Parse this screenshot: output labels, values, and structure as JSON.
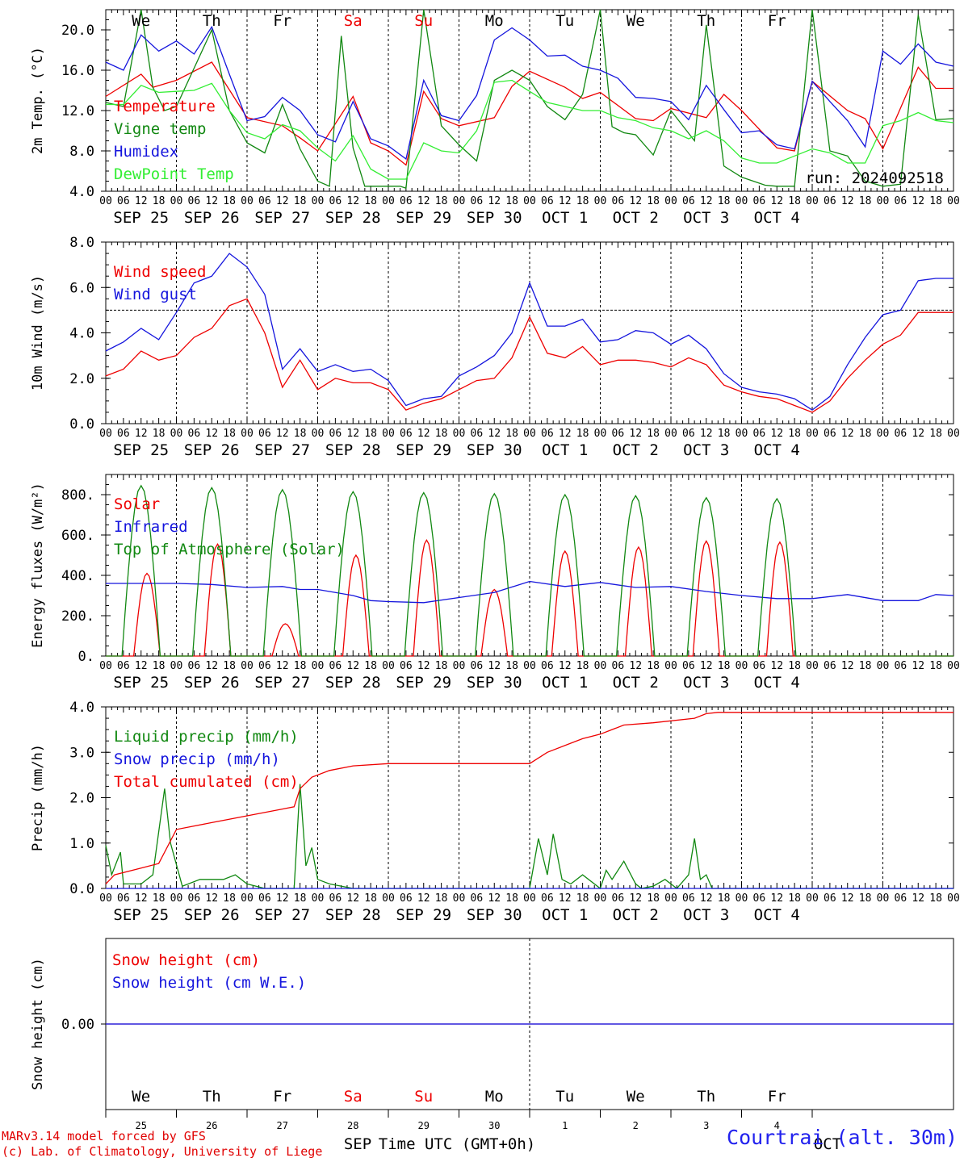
{
  "chart_data": [
    {
      "type": "line",
      "ylabel": "2m Temp. (°C)",
      "ylim": [
        4.0,
        22.0
      ],
      "yticks": [
        "4.0",
        "8.0",
        "12.0",
        "16.0",
        "20.0"
      ],
      "ytick_values": [
        4,
        8,
        12,
        16,
        20
      ],
      "annotation": "run: 2024092518",
      "series": [
        {
          "name": "Temperature",
          "color": "#ee0000",
          "x": [
            0,
            12,
            16,
            24,
            36,
            48,
            60,
            66,
            72,
            84,
            90,
            96,
            102,
            108,
            114,
            120,
            132,
            138,
            144,
            156,
            162,
            168,
            180,
            186,
            192,
            204,
            210,
            216,
            228,
            234,
            240,
            252,
            258,
            264,
            276,
            282,
            288
          ],
          "y": [
            13.4,
            15.6,
            14.3,
            15.0,
            16.8,
            11.3,
            10.5,
            9.3,
            8.0,
            13.4,
            8.8,
            8.0,
            6.6,
            13.9,
            11.2,
            10.5,
            11.3,
            14.4,
            15.9,
            14.3,
            13.2,
            13.8,
            11.2,
            11.0,
            12.2,
            11.3,
            13.6,
            12.0,
            8.3,
            8.0,
            14.9,
            12.0,
            11.2,
            8.2,
            16.3,
            14.2,
            14.2
          ]
        },
        {
          "name": "Vigne temp",
          "color": "#118811",
          "x": [
            0,
            6,
            12,
            16,
            20,
            24,
            36,
            42,
            48,
            54,
            60,
            66,
            72,
            76,
            80,
            84,
            88,
            92,
            96,
            100,
            102,
            108,
            114,
            120,
            126,
            132,
            138,
            144,
            150,
            156,
            162,
            168,
            172,
            176,
            180,
            186,
            192,
            200,
            204,
            210,
            216,
            224,
            228,
            234,
            240,
            246,
            252,
            258,
            264,
            270,
            276,
            282,
            288
          ],
          "y": [
            12.8,
            12.4,
            22.0,
            14.3,
            12.0,
            12.4,
            20.0,
            12.0,
            8.8,
            7.8,
            12.6,
            8.2,
            5.0,
            4.5,
            19.4,
            8.3,
            4.5,
            4.5,
            4.5,
            4.5,
            4.3,
            22.0,
            10.5,
            8.6,
            7.0,
            15.0,
            16.0,
            15.0,
            12.4,
            11.1,
            13.6,
            22.0,
            10.4,
            9.8,
            9.6,
            7.6,
            12.0,
            9.0,
            20.5,
            6.5,
            5.4,
            4.6,
            4.5,
            4.5,
            22.0,
            8.0,
            7.5,
            5.0,
            4.5,
            4.7,
            21.5,
            11.1,
            11.2
          ]
        },
        {
          "name": "Humidex",
          "color": "#1515dd",
          "x": [
            0,
            6,
            12,
            18,
            24,
            30,
            36,
            42,
            48,
            54,
            60,
            66,
            72,
            78,
            84,
            90,
            96,
            102,
            108,
            114,
            120,
            126,
            132,
            138,
            144,
            150,
            156,
            162,
            168,
            174,
            180,
            186,
            192,
            198,
            204,
            210,
            216,
            222,
            228,
            234,
            240,
            246,
            252,
            258,
            264,
            270,
            276,
            282,
            288
          ],
          "y": [
            16.8,
            16.0,
            19.5,
            17.9,
            18.9,
            17.6,
            20.3,
            15.6,
            11.0,
            11.4,
            13.3,
            12.0,
            9.6,
            8.9,
            12.9,
            9.2,
            8.5,
            7.2,
            15.0,
            11.5,
            11.0,
            13.5,
            19.0,
            20.2,
            19.0,
            17.4,
            17.5,
            16.4,
            16.0,
            15.2,
            13.3,
            13.2,
            12.9,
            11.1,
            14.5,
            12.1,
            9.8,
            10.0,
            8.6,
            8.2,
            14.9,
            12.9,
            11.0,
            8.4,
            17.9,
            16.6,
            18.6,
            16.8,
            16.4
          ]
        },
        {
          "name": "DewPoint Temp",
          "color": "#33ee33",
          "x": [
            0,
            6,
            12,
            18,
            24,
            30,
            36,
            42,
            48,
            54,
            60,
            66,
            72,
            78,
            84,
            90,
            96,
            102,
            108,
            114,
            120,
            126,
            132,
            138,
            144,
            150,
            156,
            162,
            168,
            174,
            180,
            186,
            192,
            198,
            204,
            210,
            216,
            222,
            228,
            234,
            240,
            246,
            252,
            258,
            264,
            270,
            276,
            282,
            288
          ],
          "y": [
            12.6,
            12.6,
            14.5,
            13.8,
            13.9,
            14.0,
            14.7,
            12.0,
            9.8,
            9.2,
            10.6,
            10.0,
            8.3,
            7.0,
            9.5,
            6.2,
            5.2,
            5.2,
            8.8,
            8.0,
            7.8,
            10.0,
            14.8,
            15.0,
            13.9,
            12.8,
            12.4,
            12.0,
            12.0,
            11.3,
            11.0,
            10.3,
            10.0,
            9.2,
            10.0,
            9.0,
            7.3,
            6.8,
            6.8,
            7.5,
            8.2,
            7.8,
            6.8,
            6.8,
            10.5,
            11.0,
            11.8,
            11.0,
            10.8
          ]
        }
      ]
    },
    {
      "type": "line",
      "ylabel": "10m Wind (m/s)",
      "ylim": [
        0.0,
        8.0
      ],
      "yticks": [
        "0.0",
        "2.0",
        "4.0",
        "6.0",
        "8.0"
      ],
      "ytick_values": [
        0,
        2,
        4,
        6,
        8
      ],
      "reference_line": 5.0,
      "series": [
        {
          "name": "Wind speed",
          "color": "#ee0000",
          "x": [
            0,
            6,
            12,
            18,
            24,
            30,
            36,
            42,
            48,
            54,
            60,
            66,
            72,
            78,
            84,
            90,
            96,
            102,
            108,
            114,
            120,
            126,
            132,
            138,
            144,
            150,
            156,
            162,
            168,
            174,
            180,
            186,
            192,
            198,
            204,
            210,
            216,
            222,
            228,
            234,
            240,
            246,
            252,
            258,
            264,
            270,
            276,
            282,
            288
          ],
          "y": [
            2.1,
            2.4,
            3.2,
            2.8,
            3.0,
            3.8,
            4.2,
            5.2,
            5.5,
            4.0,
            1.6,
            2.8,
            1.5,
            2.0,
            1.8,
            1.8,
            1.5,
            0.6,
            0.9,
            1.1,
            1.5,
            1.9,
            2.0,
            2.9,
            4.7,
            3.1,
            2.9,
            3.4,
            2.6,
            2.8,
            2.8,
            2.7,
            2.5,
            2.9,
            2.6,
            1.7,
            1.4,
            1.2,
            1.1,
            0.8,
            0.5,
            1.0,
            2.0,
            2.8,
            3.5,
            3.9,
            4.9,
            4.9,
            4.9
          ]
        },
        {
          "name": "Wind gust",
          "color": "#1515dd",
          "x": [
            0,
            6,
            12,
            18,
            24,
            30,
            36,
            42,
            48,
            54,
            60,
            66,
            72,
            78,
            84,
            90,
            96,
            102,
            108,
            114,
            120,
            126,
            132,
            138,
            144,
            150,
            156,
            162,
            168,
            174,
            180,
            186,
            192,
            198,
            204,
            210,
            216,
            222,
            228,
            234,
            240,
            246,
            252,
            258,
            264,
            270,
            276,
            282,
            288
          ],
          "y": [
            3.2,
            3.6,
            4.2,
            3.7,
            4.9,
            6.2,
            6.5,
            7.5,
            6.9,
            5.7,
            2.4,
            3.3,
            2.3,
            2.6,
            2.3,
            2.4,
            1.9,
            0.8,
            1.1,
            1.2,
            2.1,
            2.5,
            3.0,
            4.0,
            6.2,
            4.3,
            4.3,
            4.6,
            3.6,
            3.7,
            4.1,
            4.0,
            3.5,
            3.9,
            3.3,
            2.2,
            1.6,
            1.4,
            1.3,
            1.1,
            0.6,
            1.2,
            2.6,
            3.8,
            4.8,
            5.0,
            6.3,
            6.4,
            6.4
          ]
        }
      ]
    },
    {
      "type": "line",
      "ylabel": "Energy fluxes (W/m²)",
      "ylim": [
        0,
        900
      ],
      "yticks": [
        "0.",
        "200.",
        "400.",
        "600.",
        "800."
      ],
      "ytick_values": [
        0,
        200,
        400,
        600,
        800
      ],
      "series": [
        {
          "name": "Solar",
          "color": "#ee0000",
          "peaks": [
            410,
            555,
            160,
            500,
            575,
            330,
            520,
            540,
            570,
            565
          ],
          "peak_hours": [
            14,
            14,
            13,
            13,
            13,
            12,
            12,
            13,
            12,
            13
          ]
        },
        {
          "name": "Infrared",
          "color": "#1515dd",
          "x": [
            0,
            12,
            24,
            36,
            48,
            60,
            66,
            72,
            84,
            90,
            96,
            108,
            120,
            132,
            144,
            156,
            168,
            180,
            192,
            204,
            216,
            228,
            240,
            252,
            264,
            276,
            282,
            288
          ],
          "y": [
            360,
            360,
            360,
            355,
            340,
            345,
            330,
            330,
            300,
            275,
            270,
            265,
            290,
            315,
            370,
            345,
            365,
            340,
            345,
            320,
            300,
            285,
            285,
            305,
            275,
            275,
            305,
            300
          ]
        },
        {
          "name": "Top of Atmosphere (Solar)",
          "color": "#118811",
          "peaks": [
            845,
            835,
            825,
            815,
            810,
            805,
            800,
            795,
            785,
            780
          ],
          "peak_hours": [
            12,
            12,
            12,
            12,
            12,
            12,
            12,
            12,
            12,
            12
          ]
        }
      ]
    },
    {
      "type": "line",
      "ylabel": "Precip (mm/h)",
      "ylim": [
        0.0,
        4.0
      ],
      "yticks": [
        "0.0",
        "1.0",
        "2.0",
        "3.0",
        "4.0"
      ],
      "ytick_values": [
        0,
        1,
        2,
        3,
        4
      ],
      "series": [
        {
          "name": "Liquid precip (mm/h)",
          "color": "#118811",
          "x": [
            0,
            2,
            5,
            6,
            8,
            12,
            16,
            20,
            22,
            26,
            32,
            40,
            44,
            48,
            54,
            60,
            64,
            66,
            68,
            70,
            72,
            76,
            84,
            90,
            96,
            108,
            144,
            147,
            150,
            152,
            155,
            158,
            162,
            168,
            170,
            172,
            176,
            180,
            182,
            186,
            190,
            194,
            198,
            200,
            202,
            204,
            206,
            210,
            216,
            288
          ],
          "y": [
            0.95,
            0.3,
            0.8,
            0.1,
            0.1,
            0.1,
            0.3,
            2.2,
            1.0,
            0.05,
            0.2,
            0.2,
            0.3,
            0.1,
            0,
            0,
            0,
            2.3,
            0.5,
            0.9,
            0.2,
            0.1,
            0,
            0,
            0,
            0,
            0,
            1.1,
            0.3,
            1.2,
            0.2,
            0.1,
            0.3,
            0,
            0.4,
            0.2,
            0.6,
            0.1,
            0,
            0.05,
            0.2,
            0,
            0.3,
            1.1,
            0.2,
            0.3,
            0,
            0,
            0,
            0
          ]
        },
        {
          "name": "Snow precip (mm/h)",
          "color": "#1515dd",
          "x": [
            0,
            288
          ],
          "y": [
            0,
            0
          ]
        },
        {
          "name": "Total cumulated (cm)",
          "color": "#ee0000",
          "x": [
            0,
            3,
            12,
            18,
            20,
            24,
            36,
            48,
            60,
            64,
            66,
            70,
            76,
            84,
            96,
            108,
            144,
            150,
            158,
            162,
            168,
            176,
            186,
            200,
            204,
            208,
            216,
            288
          ],
          "y": [
            0.1,
            0.3,
            0.45,
            0.55,
            0.8,
            1.3,
            1.45,
            1.6,
            1.75,
            1.8,
            2.2,
            2.45,
            2.6,
            2.7,
            2.75,
            2.75,
            2.75,
            3.0,
            3.2,
            3.3,
            3.4,
            3.6,
            3.65,
            3.75,
            3.85,
            3.88,
            3.88,
            3.88
          ]
        }
      ]
    },
    {
      "type": "line",
      "ylabel": "Snow height (cm)",
      "ylim": [
        -1,
        1
      ],
      "yticks": [
        "0.00"
      ],
      "ytick_values": [
        0
      ],
      "series": [
        {
          "name": "Snow height (cm)",
          "color": "#ee0000",
          "x": [
            0,
            288
          ],
          "y": [
            0,
            0
          ]
        },
        {
          "name": "Snow height (cm W.E.)",
          "color": "#1515dd",
          "x": [
            0,
            288
          ],
          "y": [
            0,
            0
          ]
        }
      ]
    }
  ],
  "axis": {
    "x_range_hours": [
      0,
      288
    ],
    "hour_labels": [
      "00",
      "06",
      "12",
      "18"
    ],
    "date_labels": [
      "SEP 25",
      "SEP 26",
      "SEP 27",
      "SEP 28",
      "SEP 29",
      "SEP 30",
      "OCT  1",
      "OCT  2",
      "OCT  3",
      "OCT  4"
    ],
    "weekday_labels": [
      "We",
      "Th",
      "Fr",
      "Sa",
      "Su",
      "Mo",
      "Tu",
      "We",
      "Th",
      "Fr"
    ],
    "weekend_color": "#ee0000",
    "weekday_color": "#000000",
    "weekend_days": [
      3,
      4
    ],
    "bottom_day_numbers": [
      "25",
      "26",
      "27",
      "28",
      "29",
      "30",
      "1",
      "2",
      "3",
      "4"
    ],
    "bottom_month_left": "SEP",
    "bottom_month_right": "OCT",
    "bottom_axis_title": "Time UTC (GMT+0h)"
  },
  "footer": {
    "credit_line1": "MARv3.14 model forced by GFS",
    "credit_line2": "(c) Lab. of Climatology, University of Liege",
    "station": "Courtrai (alt. 30m)"
  }
}
